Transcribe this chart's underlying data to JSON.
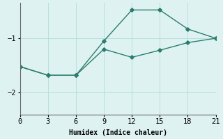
{
  "xlabel": "Humidex (Indice chaleur)",
  "bg_color": "#dff2f2",
  "line_color": "#2a7d6e",
  "line1_x": [
    0,
    3,
    6,
    9,
    12,
    15,
    18,
    21
  ],
  "line1_y": [
    -1.52,
    -1.68,
    -1.68,
    -1.05,
    -0.48,
    -0.48,
    -0.83,
    -1.0
  ],
  "line2_x": [
    0,
    3,
    6,
    9,
    12,
    15,
    18,
    21
  ],
  "line2_y": [
    -1.52,
    -1.68,
    -1.68,
    -1.2,
    -1.35,
    -1.22,
    -1.08,
    -1.0
  ],
  "xlim": [
    0,
    21
  ],
  "ylim": [
    -2.4,
    -0.35
  ],
  "yticks": [
    -2,
    -1
  ],
  "xticks": [
    0,
    3,
    6,
    9,
    12,
    15,
    18,
    21
  ],
  "grid_color": "#b8dede",
  "marker": "D",
  "markersize": 2.8,
  "linewidth": 1.0,
  "label_fontsize": 7,
  "tick_fontsize": 7.5
}
